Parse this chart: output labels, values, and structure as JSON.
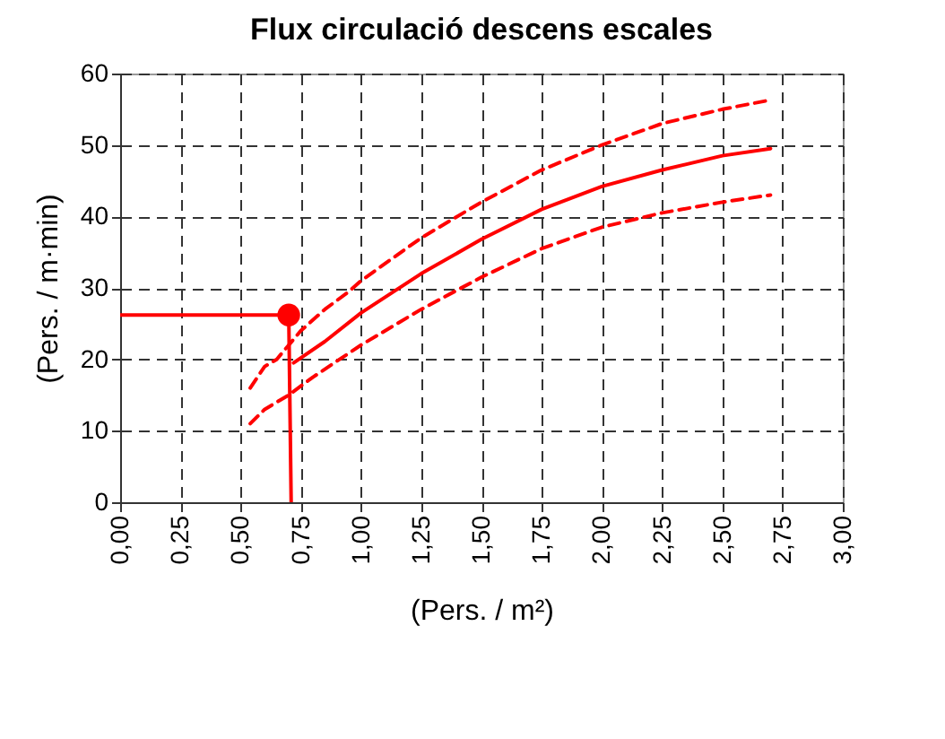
{
  "chart_data": {
    "type": "line",
    "title": "Flux circulació descens escales",
    "xlabel": "(Pers. / m²)",
    "ylabel": "(Pers. / m·min)",
    "xlim": [
      0,
      3
    ],
    "ylim": [
      0,
      60
    ],
    "xticks": [
      {
        "value": 0,
        "label": "0,00"
      },
      {
        "value": 0.25,
        "label": "0,25"
      },
      {
        "value": 0.5,
        "label": "0,50"
      },
      {
        "value": 0.75,
        "label": "0,75"
      },
      {
        "value": 1,
        "label": "1,00"
      },
      {
        "value": 1.25,
        "label": "1,25"
      },
      {
        "value": 1.5,
        "label": "1,50"
      },
      {
        "value": 1.75,
        "label": "1,75"
      },
      {
        "value": 2,
        "label": "2,00"
      },
      {
        "value": 2.25,
        "label": "2,25"
      },
      {
        "value": 2.5,
        "label": "2,50"
      },
      {
        "value": 2.75,
        "label": "2,75"
      },
      {
        "value": 3,
        "label": "3,00"
      }
    ],
    "yticks": [
      0,
      10,
      20,
      30,
      40,
      50,
      60
    ],
    "grid": true,
    "legend": false,
    "series": [
      {
        "color": "#ff0000",
        "line_style": "dashed",
        "x": [
          0.54,
          0.6,
          0.65,
          0.7,
          0.75,
          0.85,
          0.95,
          1.0,
          1.25,
          1.5,
          1.75,
          2.0,
          2.25,
          2.5,
          2.7
        ],
        "values": [
          16,
          19,
          20,
          22,
          24,
          27,
          29.5,
          31,
          37,
          42,
          46.5,
          50,
          53,
          55,
          56.3
        ]
      },
      {
        "color": "#ff0000",
        "line_style": "solid",
        "x": [
          0.72,
          0.85,
          1.0,
          1.25,
          1.5,
          1.75,
          2.0,
          2.25,
          2.5,
          2.7
        ],
        "values": [
          19.5,
          22.5,
          26.5,
          32,
          36.8,
          41,
          44.2,
          46.5,
          48.5,
          49.5
        ]
      },
      {
        "color": "#ff0000",
        "line_style": "dashed",
        "x": [
          0.54,
          0.6,
          0.7,
          0.8,
          1.0,
          1.25,
          1.5,
          1.75,
          2.0,
          2.25,
          2.5,
          2.7
        ],
        "values": [
          11,
          13,
          15,
          17.5,
          22,
          27,
          31.5,
          35.5,
          38.5,
          40.5,
          42,
          43
        ]
      },
      {
        "color": "#ff0000",
        "line_style": "solid",
        "x": [
          0,
          0.7
        ],
        "values": [
          26.2,
          26.2
        ]
      },
      {
        "color": "#ff0000",
        "line_style": "solid",
        "x": [
          0.7,
          0.71
        ],
        "values": [
          26.2,
          0
        ]
      },
      {
        "type": "scatter",
        "color": "#ff0000",
        "marker": "circle",
        "x": [
          0.7
        ],
        "values": [
          26.2
        ]
      }
    ]
  }
}
